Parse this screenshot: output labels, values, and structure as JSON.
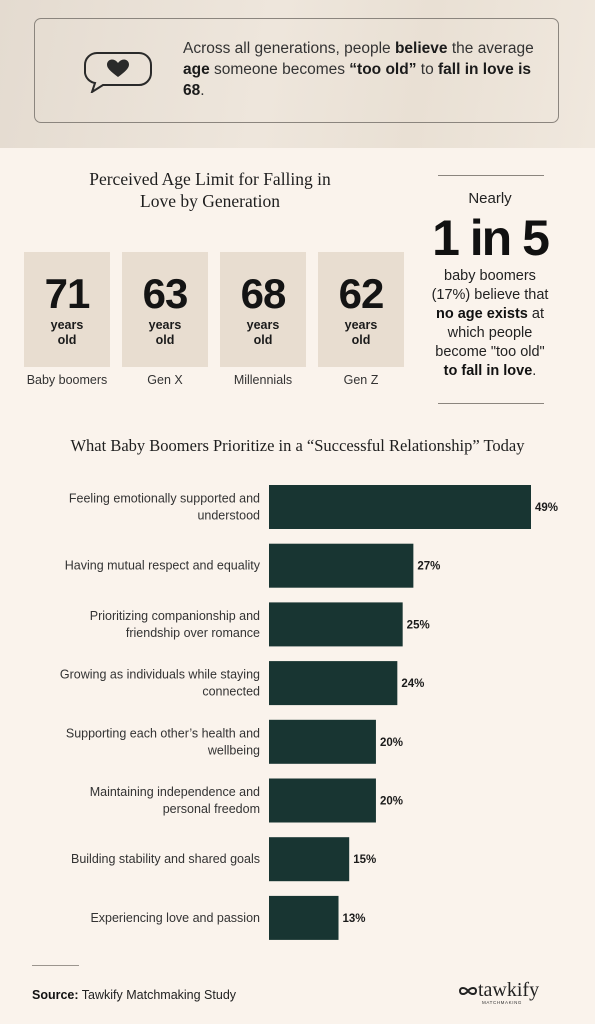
{
  "callout": {
    "parts": [
      {
        "t": "Across all generations, people ",
        "b": false
      },
      {
        "t": "believe",
        "b": true
      },
      {
        "t": " the average ",
        "b": false
      },
      {
        "t": "age",
        "b": true
      },
      {
        "t": " someone becomes ",
        "b": false
      },
      {
        "t": "“too old”",
        "b": true
      },
      {
        "t": " to ",
        "b": false
      },
      {
        "t": "fall in love is 68",
        "b": true
      },
      {
        "t": ".",
        "b": false
      }
    ],
    "icon": "heart-speech-bubble-icon"
  },
  "age_section": {
    "title_line1": "Perceived Age Limit for Falling in",
    "title_line2": "Love by Generation",
    "unit_line1": "years",
    "unit_line2": "old",
    "cards": [
      {
        "value": "71",
        "label": "Baby boomers"
      },
      {
        "value": "63",
        "label": "Gen X"
      },
      {
        "value": "68",
        "label": "Millennials"
      },
      {
        "value": "62",
        "label": "Gen Z"
      }
    ]
  },
  "side_stat": {
    "nearly": "Nearly",
    "big": "1 in 5",
    "line1": "baby boomers",
    "line2": "(17%) believe that",
    "bold1": "no age exists",
    "line3": " at",
    "line4": "which people",
    "line5": "become \"too old\"",
    "bold2": "to fall in love",
    "end": "."
  },
  "chart_data": {
    "type": "bar",
    "orientation": "horizontal",
    "title": "What Baby Boomers Prioritize in a “Successful Relationship” Today",
    "categories": [
      "Feeling emotionally supported and understood",
      "Having mutual respect and equality",
      "Prioritizing companionship and friendship over romance",
      "Growing as individuals while staying connected",
      "Supporting each other’s health and wellbeing",
      "Maintaining independence and personal freedom",
      "Building stability and shared goals",
      "Experiencing love and passion"
    ],
    "label_lines": [
      [
        "Feeling emotionally supported and",
        "understood"
      ],
      [
        "Having mutual respect and equality"
      ],
      [
        "Prioritizing companionship and",
        "friendship over romance"
      ],
      [
        "Growing as individuals while staying",
        "connected"
      ],
      [
        "Supporting each other’s health and",
        "wellbeing"
      ],
      [
        "Maintaining independence and",
        "personal freedom"
      ],
      [
        "Building stability and shared goals"
      ],
      [
        "Experiencing love and passion"
      ]
    ],
    "values": [
      49,
      27,
      25,
      24,
      20,
      20,
      15,
      13
    ],
    "value_suffix": "%",
    "bar_color": "#183532",
    "grid": false,
    "legend": "none"
  },
  "footer": {
    "source_label": "Source:",
    "source_text": " Tawkify Matchmaking Study",
    "logo_name": "tawkify",
    "logo_sub": "MATCHMAKING"
  }
}
